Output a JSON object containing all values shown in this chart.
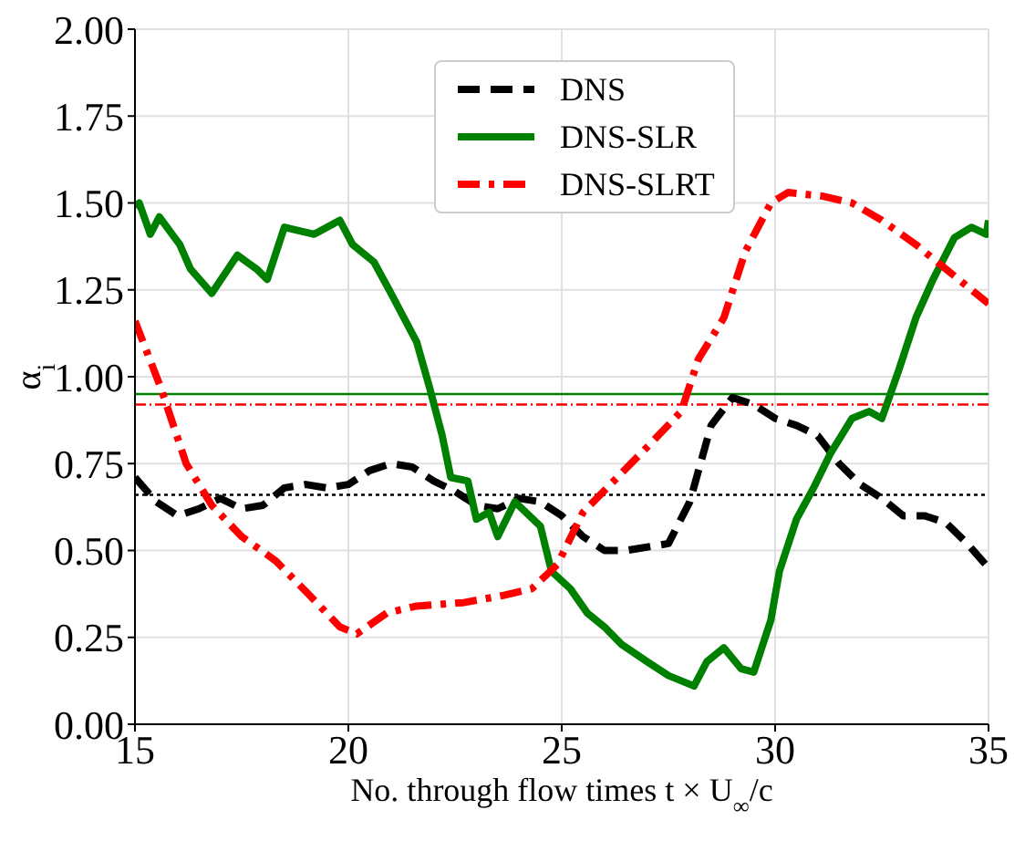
{
  "chart_data": {
    "type": "line",
    "xlabel": "No. through flow times t × U$_{∞}$/c",
    "ylabel": "α$_{i}$",
    "xlim": [
      15,
      35
    ],
    "xticks": [
      15,
      20,
      25,
      30,
      35
    ],
    "ylim": [
      0,
      2
    ],
    "yticks": [
      {
        "value": 0,
        "label": "0.00"
      },
      {
        "value": 0.25,
        "label": "0.25"
      },
      {
        "value": 0.5,
        "label": "0.50"
      },
      {
        "value": 0.75,
        "label": "0.75"
      },
      {
        "value": 1,
        "label": "1.00"
      },
      {
        "value": 1.25,
        "label": "1.25"
      },
      {
        "value": 1.5,
        "label": "1.50"
      },
      {
        "value": 1.75,
        "label": "1.75"
      },
      {
        "value": 2,
        "label": "2.00"
      }
    ],
    "grid": true,
    "legend": "top",
    "marker": "none",
    "series": [
      {
        "name": "DNS",
        "color": "#000000",
        "line_style": "dashed",
        "x": [
          15,
          15.5,
          16,
          16.5,
          17,
          17.5,
          18,
          18.5,
          19,
          19.5,
          20,
          20.5,
          21,
          21.5,
          22,
          22.5,
          23,
          23.5,
          24,
          24.5,
          25,
          25.5,
          26,
          26.5,
          27,
          27.5,
          28,
          28.5,
          29,
          29.5,
          30,
          30.5,
          31,
          31.5,
          32,
          32.5,
          33,
          33.5,
          34,
          34.5,
          35
        ],
        "values": [
          0.71,
          0.64,
          0.6,
          0.62,
          0.65,
          0.62,
          0.63,
          0.68,
          0.69,
          0.68,
          0.69,
          0.73,
          0.75,
          0.74,
          0.7,
          0.67,
          0.63,
          0.62,
          0.65,
          0.64,
          0.6,
          0.54,
          0.5,
          0.5,
          0.51,
          0.52,
          0.64,
          0.86,
          0.94,
          0.92,
          0.88,
          0.86,
          0.83,
          0.75,
          0.69,
          0.65,
          0.6,
          0.6,
          0.58,
          0.52,
          0.45
        ]
      },
      {
        "name": "DNS-SLR",
        "color": "#008000",
        "line_style": "solid",
        "x": [
          15,
          15.1,
          15.36,
          15.57,
          16.05,
          16.3,
          16.8,
          17.4,
          17.85,
          18.1,
          18.5,
          19.2,
          19.8,
          20.1,
          20.6,
          21,
          21.6,
          21.9,
          22.2,
          22.4,
          22.8,
          23,
          23.3,
          23.5,
          23.9,
          24.5,
          24.76,
          25.2,
          25.6,
          26,
          26.4,
          27,
          27.5,
          28.1,
          28.4,
          28.8,
          29.2,
          29.5,
          29.9,
          30.1,
          30.5,
          30.9,
          31.3,
          31.8,
          32.2,
          32.5,
          32.9,
          33.3,
          33.7,
          34.2,
          34.6,
          34.95,
          35
        ],
        "values": [
          1.49,
          1.5,
          1.41,
          1.46,
          1.38,
          1.31,
          1.24,
          1.35,
          1.31,
          1.28,
          1.43,
          1.41,
          1.45,
          1.38,
          1.33,
          1.24,
          1.1,
          0.97,
          0.83,
          0.71,
          0.7,
          0.59,
          0.61,
          0.54,
          0.64,
          0.57,
          0.44,
          0.39,
          0.32,
          0.28,
          0.23,
          0.18,
          0.14,
          0.11,
          0.18,
          0.22,
          0.16,
          0.15,
          0.3,
          0.44,
          0.59,
          0.68,
          0.78,
          0.88,
          0.9,
          0.88,
          1.02,
          1.17,
          1.28,
          1.4,
          1.43,
          1.41,
          1.45
        ]
      },
      {
        "name": "DNS-SLRT",
        "color": "#ff0000",
        "line_style": "dashdot",
        "x": [
          15,
          15.6,
          16.2,
          16.8,
          17.5,
          18.3,
          19.1,
          19.8,
          20.2,
          20.9,
          21.6,
          22.7,
          23.6,
          24.3,
          24.9,
          25.5,
          26.3,
          27.1,
          27.8,
          28.2,
          28.8,
          29.3,
          29.9,
          30.3,
          31.1,
          31.8,
          32.5,
          33.3,
          34.2,
          35
        ],
        "values": [
          1.16,
          0.97,
          0.75,
          0.63,
          0.54,
          0.47,
          0.37,
          0.28,
          0.26,
          0.32,
          0.34,
          0.35,
          0.37,
          0.39,
          0.46,
          0.61,
          0.71,
          0.81,
          0.9,
          1.05,
          1.17,
          1.36,
          1.5,
          1.53,
          1.52,
          1.5,
          1.45,
          1.38,
          1.29,
          1.21
        ]
      }
    ],
    "ref_lines": [
      {
        "axis": "y",
        "value": 0.66,
        "color": "#000000",
        "line_style": "dotted"
      },
      {
        "axis": "y",
        "value": 0.95,
        "color": "#008000",
        "line_style": "solid"
      },
      {
        "axis": "y",
        "value": 0.92,
        "color": "#ff0000",
        "line_style": "dashdot"
      }
    ]
  }
}
